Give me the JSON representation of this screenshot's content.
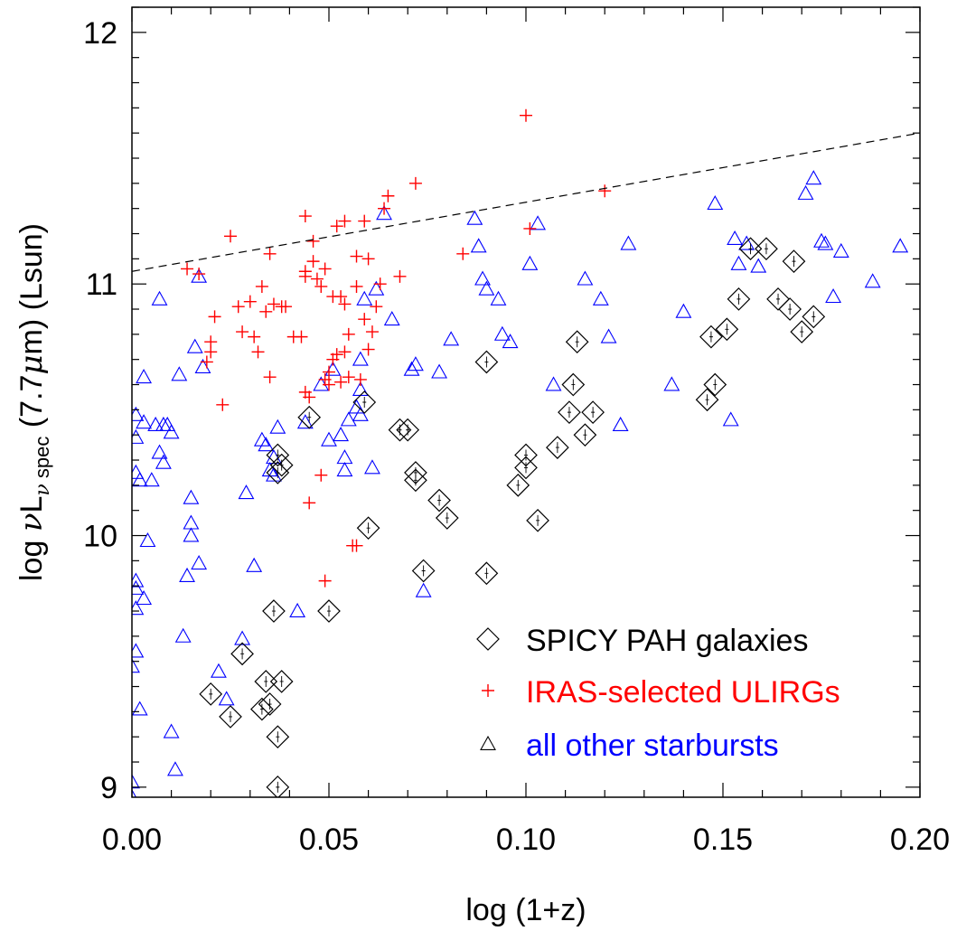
{
  "chart_data": {
    "type": "scatter",
    "xlabel": "log (1+z)",
    "ylabel": {
      "prefix": "log ",
      "nu1": "ν",
      "L": "L",
      "sub_nu": "ν",
      "sub_spec": " spec",
      "suffix": " (7.7",
      "mu": "μ",
      "suffix2": "m) (Lsun)"
    },
    "xlim": [
      0.0,
      0.2
    ],
    "ylim": [
      8.96,
      12.1
    ],
    "x_ticks": [
      "0.00",
      "0.05",
      "0.10",
      "0.15",
      "0.20"
    ],
    "x_tick_values": [
      0.0,
      0.05,
      0.1,
      0.15,
      0.2
    ],
    "y_ticks": [
      "9",
      "10",
      "11",
      "12"
    ],
    "y_tick_values": [
      9,
      10,
      11,
      12
    ],
    "reference_line": {
      "style": "dashed",
      "x": [
        0.0,
        0.2
      ],
      "y": [
        11.05,
        11.6
      ]
    },
    "legend": {
      "position": "bottom-right"
    },
    "series": [
      {
        "name": "SPICY PAH galaxies",
        "marker": "diamond",
        "color": "#000000",
        "points": [
          [
            0.02,
            9.37
          ],
          [
            0.025,
            9.28
          ],
          [
            0.028,
            9.53
          ],
          [
            0.033,
            9.31
          ],
          [
            0.034,
            9.42
          ],
          [
            0.035,
            9.33
          ],
          [
            0.036,
            9.7
          ],
          [
            0.037,
            9.2
          ],
          [
            0.038,
            9.42
          ],
          [
            0.037,
            9.0
          ],
          [
            0.038,
            10.28
          ],
          [
            0.037,
            10.32
          ],
          [
            0.037,
            10.25
          ],
          [
            0.045,
            10.47
          ],
          [
            0.05,
            9.7
          ],
          [
            0.059,
            10.53
          ],
          [
            0.06,
            10.03
          ],
          [
            0.068,
            10.42
          ],
          [
            0.07,
            10.42
          ],
          [
            0.072,
            10.25
          ],
          [
            0.072,
            10.22
          ],
          [
            0.074,
            9.86
          ],
          [
            0.078,
            10.14
          ],
          [
            0.08,
            10.07
          ],
          [
            0.09,
            10.69
          ],
          [
            0.09,
            9.85
          ],
          [
            0.098,
            10.2
          ],
          [
            0.1,
            10.32
          ],
          [
            0.1,
            10.27
          ],
          [
            0.103,
            10.06
          ],
          [
            0.108,
            10.35
          ],
          [
            0.111,
            10.49
          ],
          [
            0.112,
            10.6
          ],
          [
            0.113,
            10.77
          ],
          [
            0.115,
            10.4
          ],
          [
            0.117,
            10.49
          ],
          [
            0.146,
            10.54
          ],
          [
            0.147,
            10.79
          ],
          [
            0.148,
            10.6
          ],
          [
            0.151,
            10.82
          ],
          [
            0.154,
            10.94
          ],
          [
            0.157,
            11.14
          ],
          [
            0.161,
            11.14
          ],
          [
            0.164,
            10.94
          ],
          [
            0.167,
            10.9
          ],
          [
            0.168,
            11.09
          ],
          [
            0.17,
            10.81
          ],
          [
            0.173,
            10.87
          ]
        ]
      },
      {
        "name": "IRAS-selected ULIRGs",
        "marker": "plus",
        "color": "#ff0000",
        "points": [
          [
            0.014,
            11.06
          ],
          [
            0.017,
            11.04
          ],
          [
            0.019,
            10.69
          ],
          [
            0.02,
            10.77
          ],
          [
            0.02,
            10.73
          ],
          [
            0.021,
            10.87
          ],
          [
            0.023,
            10.52
          ],
          [
            0.025,
            11.19
          ],
          [
            0.027,
            10.91
          ],
          [
            0.028,
            10.81
          ],
          [
            0.03,
            10.93
          ],
          [
            0.031,
            10.79
          ],
          [
            0.032,
            10.73
          ],
          [
            0.033,
            10.99
          ],
          [
            0.034,
            10.89
          ],
          [
            0.035,
            10.63
          ],
          [
            0.035,
            11.12
          ],
          [
            0.036,
            10.92
          ],
          [
            0.038,
            10.91
          ],
          [
            0.039,
            10.91
          ],
          [
            0.041,
            10.79
          ],
          [
            0.043,
            10.79
          ],
          [
            0.044,
            11.27
          ],
          [
            0.044,
            11.05
          ],
          [
            0.044,
            11.03
          ],
          [
            0.044,
            10.57
          ],
          [
            0.045,
            10.13
          ],
          [
            0.045,
            10.55
          ],
          [
            0.046,
            11.17
          ],
          [
            0.046,
            11.09
          ],
          [
            0.047,
            11.02
          ],
          [
            0.048,
            10.24
          ],
          [
            0.048,
            10.99
          ],
          [
            0.049,
            11.06
          ],
          [
            0.049,
            10.62
          ],
          [
            0.049,
            9.82
          ],
          [
            0.05,
            10.65
          ],
          [
            0.05,
            10.6
          ],
          [
            0.051,
            10.95
          ],
          [
            0.051,
            10.7
          ],
          [
            0.052,
            11.23
          ],
          [
            0.052,
            10.72
          ],
          [
            0.053,
            10.95
          ],
          [
            0.053,
            10.61
          ],
          [
            0.054,
            11.25
          ],
          [
            0.054,
            10.92
          ],
          [
            0.054,
            10.73
          ],
          [
            0.055,
            10.63
          ],
          [
            0.055,
            10.8
          ],
          [
            0.056,
            9.96
          ],
          [
            0.057,
            11.11
          ],
          [
            0.057,
            10.99
          ],
          [
            0.057,
            9.96
          ],
          [
            0.058,
            10.62
          ],
          [
            0.059,
            11.25
          ],
          [
            0.059,
            10.86
          ],
          [
            0.06,
            11.1
          ],
          [
            0.06,
            10.74
          ],
          [
            0.061,
            10.81
          ],
          [
            0.062,
            10.91
          ],
          [
            0.063,
            11.0
          ],
          [
            0.064,
            11.3
          ],
          [
            0.065,
            11.35
          ],
          [
            0.068,
            11.03
          ],
          [
            0.072,
            11.4
          ],
          [
            0.084,
            11.12
          ],
          [
            0.1,
            11.67
          ],
          [
            0.101,
            11.22
          ],
          [
            0.12,
            11.37
          ]
        ]
      },
      {
        "name": "all other starbursts",
        "marker": "triangle",
        "color": "#0000ff",
        "points": [
          [
            0.0,
            9.02
          ],
          [
            0.0,
            8.96
          ],
          [
            0.0,
            9.48
          ],
          [
            0.001,
            9.54
          ],
          [
            0.001,
            9.82
          ],
          [
            0.001,
            9.71
          ],
          [
            0.001,
            9.79
          ],
          [
            0.001,
            10.25
          ],
          [
            0.001,
            10.39
          ],
          [
            0.001,
            10.48
          ],
          [
            0.002,
            10.22
          ],
          [
            0.002,
            9.31
          ],
          [
            0.003,
            9.75
          ],
          [
            0.003,
            10.63
          ],
          [
            0.003,
            10.45
          ],
          [
            0.004,
            9.98
          ],
          [
            0.005,
            10.22
          ],
          [
            0.006,
            10.44
          ],
          [
            0.007,
            10.94
          ],
          [
            0.007,
            10.33
          ],
          [
            0.008,
            10.29
          ],
          [
            0.008,
            10.44
          ],
          [
            0.009,
            10.44
          ],
          [
            0.01,
            10.41
          ],
          [
            0.01,
            9.22
          ],
          [
            0.011,
            9.07
          ],
          [
            0.012,
            10.64
          ],
          [
            0.013,
            9.6
          ],
          [
            0.014,
            9.84
          ],
          [
            0.015,
            10.15
          ],
          [
            0.015,
            10.05
          ],
          [
            0.015,
            10.0
          ],
          [
            0.016,
            10.75
          ],
          [
            0.017,
            11.03
          ],
          [
            0.017,
            9.89
          ],
          [
            0.018,
            10.67
          ],
          [
            0.022,
            9.46
          ],
          [
            0.024,
            9.35
          ],
          [
            0.028,
            9.59
          ],
          [
            0.029,
            10.17
          ],
          [
            0.031,
            9.88
          ],
          [
            0.033,
            10.38
          ],
          [
            0.034,
            10.36
          ],
          [
            0.035,
            10.26
          ],
          [
            0.036,
            10.24
          ],
          [
            0.036,
            10.31
          ],
          [
            0.037,
            10.43
          ],
          [
            0.042,
            9.7
          ],
          [
            0.044,
            10.45
          ],
          [
            0.048,
            10.6
          ],
          [
            0.05,
            10.38
          ],
          [
            0.051,
            10.66
          ],
          [
            0.053,
            10.4
          ],
          [
            0.054,
            10.26
          ],
          [
            0.054,
            10.31
          ],
          [
            0.055,
            10.46
          ],
          [
            0.057,
            10.51
          ],
          [
            0.058,
            10.48
          ],
          [
            0.058,
            10.58
          ],
          [
            0.058,
            10.7
          ],
          [
            0.059,
            10.94
          ],
          [
            0.061,
            10.27
          ],
          [
            0.062,
            10.98
          ],
          [
            0.064,
            11.28
          ],
          [
            0.066,
            10.86
          ],
          [
            0.071,
            10.66
          ],
          [
            0.072,
            10.68
          ],
          [
            0.074,
            9.78
          ],
          [
            0.078,
            10.65
          ],
          [
            0.081,
            10.78
          ],
          [
            0.087,
            11.26
          ],
          [
            0.088,
            11.15
          ],
          [
            0.089,
            11.02
          ],
          [
            0.09,
            10.98
          ],
          [
            0.093,
            10.94
          ],
          [
            0.094,
            10.8
          ],
          [
            0.096,
            10.77
          ],
          [
            0.101,
            11.08
          ],
          [
            0.103,
            11.24
          ],
          [
            0.107,
            10.6
          ],
          [
            0.115,
            11.02
          ],
          [
            0.119,
            10.94
          ],
          [
            0.121,
            10.79
          ],
          [
            0.124,
            10.44
          ],
          [
            0.126,
            11.16
          ],
          [
            0.137,
            10.6
          ],
          [
            0.14,
            10.89
          ],
          [
            0.148,
            11.32
          ],
          [
            0.152,
            10.46
          ],
          [
            0.153,
            11.18
          ],
          [
            0.154,
            11.08
          ],
          [
            0.156,
            11.16
          ],
          [
            0.159,
            11.07
          ],
          [
            0.171,
            11.36
          ],
          [
            0.173,
            11.42
          ],
          [
            0.175,
            11.17
          ],
          [
            0.176,
            11.16
          ],
          [
            0.178,
            10.95
          ],
          [
            0.18,
            11.13
          ],
          [
            0.188,
            11.01
          ],
          [
            0.195,
            11.15
          ]
        ]
      }
    ]
  }
}
